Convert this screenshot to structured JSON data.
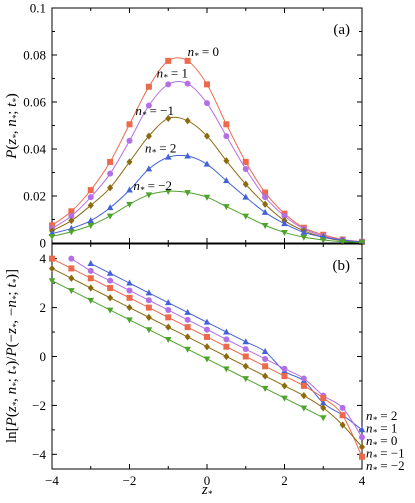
{
  "colors": {
    "n0": "#ec6a4b",
    "n1": "#b56fe6",
    "nm1": "#8c6a10",
    "n2": "#4462d8",
    "nm2": "#4ea32c"
  },
  "chart_data": [
    {
      "type": "line",
      "panel_label": "(a)",
      "title": "",
      "xlabel": "",
      "ylabel": "P(z*, n*; t*)",
      "xlim": [
        -4,
        4
      ],
      "ylim": [
        0,
        0.1
      ],
      "xticks": [],
      "yticks": [
        "0",
        "0.02",
        "0.04",
        "0.06",
        "0.08",
        "0.1"
      ],
      "grid": false,
      "x": [
        -4,
        -3.5,
        -3,
        -2.5,
        -2,
        -1.5,
        -1,
        -0.5,
        0,
        0.5,
        1,
        1.5,
        2,
        2.5,
        3,
        3.5,
        4
      ],
      "series": [
        {
          "name": "n* = 0",
          "color_key": "n0",
          "marker": "square",
          "values": [
            0.0075,
            0.0135,
            0.0225,
            0.0345,
            0.0505,
            0.0665,
            0.0775,
            0.0775,
            0.0675,
            0.0505,
            0.0345,
            0.0215,
            0.0125,
            0.0065,
            0.0035,
            0.0015,
            0.0005
          ]
        },
        {
          "name": "n* = 1",
          "color_key": "n1",
          "marker": "circle",
          "values": [
            0.0062,
            0.0115,
            0.0195,
            0.0295,
            0.0435,
            0.0585,
            0.0675,
            0.0678,
            0.0595,
            0.0455,
            0.0315,
            0.0195,
            0.0115,
            0.006,
            0.003,
            0.0013,
            0.0005
          ]
        },
        {
          "name": "n* = −1",
          "color_key": "nm1",
          "marker": "diamond",
          "values": [
            0.0052,
            0.0095,
            0.016,
            0.0235,
            0.0345,
            0.0455,
            0.053,
            0.052,
            0.0455,
            0.035,
            0.025,
            0.0165,
            0.0095,
            0.0052,
            0.0025,
            0.001,
            0.0004
          ]
        },
        {
          "name": "n* = 2",
          "color_key": "n2",
          "marker": "triangle-up",
          "values": [
            0.004,
            0.0062,
            0.0095,
            0.015,
            0.0225,
            0.0315,
            0.0365,
            0.037,
            0.0335,
            0.0265,
            0.0195,
            0.013,
            0.0082,
            0.0045,
            0.0025,
            0.0012,
            0.0004
          ]
        },
        {
          "name": "n* = −2",
          "color_key": "nm2",
          "marker": "triangle-down",
          "values": [
            0.0028,
            0.0048,
            0.0075,
            0.0115,
            0.0165,
            0.0205,
            0.022,
            0.0215,
            0.0195,
            0.0155,
            0.0115,
            0.0075,
            0.0045,
            0.0025,
            0.0013,
            0.0006,
            0.0002
          ]
        }
      ]
    },
    {
      "type": "line",
      "panel_label": "(b)",
      "title": "",
      "xlabel": "z*",
      "ylabel": "ln[P(z*, n*; t*)/P(−z*, −n*; t*)]",
      "xlim": [
        -4,
        4
      ],
      "ylim": [
        -4.6,
        4.6
      ],
      "xticks": [
        "−4",
        "−2",
        "0",
        "2",
        "4"
      ],
      "yticks": [
        "4",
        "2",
        "0",
        "−2",
        "−4"
      ],
      "grid": false,
      "x": [
        -4,
        -3.5,
        -3,
        -2.5,
        -2,
        -1.5,
        -1,
        -0.5,
        0,
        0.5,
        1,
        1.5,
        2,
        2.5,
        3,
        3.5,
        4
      ],
      "series": [
        {
          "name": "n* = 2",
          "color_key": "n2",
          "marker": "triangle-up",
          "values": [
            null,
            null,
            3.8,
            3.4,
            3.0,
            2.6,
            2.2,
            1.8,
            1.4,
            1.0,
            0.6,
            0.2,
            -0.6,
            -1.0,
            -1.9,
            -2.4,
            -3.0
          ]
        },
        {
          "name": "n* = 1",
          "color_key": "n1",
          "marker": "circle",
          "values": [
            null,
            4.0,
            3.5,
            3.1,
            2.7,
            2.3,
            1.9,
            1.5,
            1.1,
            0.7,
            0.3,
            -0.1,
            -0.5,
            -0.9,
            -1.6,
            -2.1,
            -3.3
          ]
        },
        {
          "name": "n* = 0",
          "color_key": "n0",
          "marker": "square",
          "values": [
            4.0,
            3.6,
            3.2,
            2.8,
            2.4,
            2.0,
            1.6,
            1.2,
            0.8,
            0.4,
            0.0,
            -0.4,
            -0.8,
            -1.2,
            -1.7,
            -2.4,
            -4.1
          ]
        },
        {
          "name": "n* = −1",
          "color_key": "nm1",
          "marker": "diamond",
          "values": [
            3.6,
            3.2,
            2.8,
            2.4,
            2.0,
            1.6,
            1.2,
            0.8,
            0.4,
            0.0,
            -0.4,
            -0.8,
            -1.2,
            -1.6,
            -2.1,
            -2.8,
            -3.7
          ]
        },
        {
          "name": "n* = −2",
          "color_key": "nm2",
          "marker": "triangle-down",
          "values": [
            3.1,
            2.7,
            2.3,
            1.9,
            1.5,
            1.1,
            0.7,
            0.3,
            -0.1,
            -0.5,
            -0.9,
            -1.3,
            -1.7,
            -2.1,
            -2.5,
            null,
            null
          ]
        }
      ]
    }
  ]
}
